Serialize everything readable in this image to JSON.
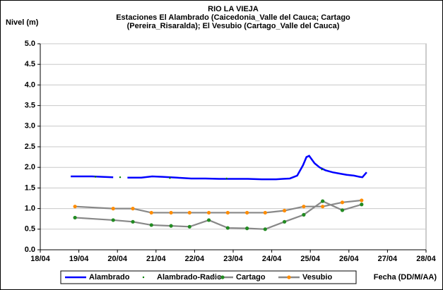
{
  "chart_data": {
    "type": "line",
    "title": "RIO LA VIEJA",
    "subtitle": [
      "Estaciones El Alambrado (Caicedonia_Valle del Cauca; Cartago",
      "(Pereira_Risaralda);  El Vesubio (Cartago_Valle del Cauca)"
    ],
    "y_label": "Nivel (m)",
    "x_label": "Fecha (DD/M/AA)",
    "xlim": [
      18,
      28
    ],
    "xticks": [
      {
        "value": 18,
        "label": "18/04"
      },
      {
        "value": 19,
        "label": "19/04"
      },
      {
        "value": 20,
        "label": "20/04"
      },
      {
        "value": 21,
        "label": "21/04"
      },
      {
        "value": 22,
        "label": "22/04"
      },
      {
        "value": 23,
        "label": "23/04"
      },
      {
        "value": 24,
        "label": "24/04"
      },
      {
        "value": 25,
        "label": "25/04"
      },
      {
        "value": 26,
        "label": "26/04"
      },
      {
        "value": 27,
        "label": "27/04"
      },
      {
        "value": 28,
        "label": "28/04"
      }
    ],
    "ylim": [
      0,
      5
    ],
    "yticks": [
      {
        "value": 0,
        "label": "0.0"
      },
      {
        "value": 0.5,
        "label": "0.5"
      },
      {
        "value": 1,
        "label": "1.0"
      },
      {
        "value": 1.5,
        "label": "1.5"
      },
      {
        "value": 2,
        "label": "2.0"
      },
      {
        "value": 2.5,
        "label": "2.5"
      },
      {
        "value": 3,
        "label": "3.0"
      },
      {
        "value": 3.5,
        "label": "3.5"
      },
      {
        "value": 4,
        "label": "4.0"
      },
      {
        "value": 4.5,
        "label": "4.5"
      },
      {
        "value": 5,
        "label": "5.0"
      }
    ],
    "grid": true,
    "legend": "bottom",
    "series": [
      {
        "name": "Alambrado",
        "color": "#0000ff",
        "line_color": "#0000ff",
        "marker": false,
        "x": [
          18.79,
          19.06,
          19.34,
          19.61,
          19.89,
          20.04,
          20.26,
          20.62,
          20.9,
          21.17,
          21.54,
          21.91,
          22.28,
          22.64,
          23.01,
          23.38,
          23.74,
          24.11,
          24.29,
          24.47,
          24.66,
          24.81,
          24.9,
          24.97,
          25.11,
          25.24,
          25.39,
          25.58,
          25.76,
          25.94,
          26.13,
          26.28,
          26.35,
          26.46
        ],
        "values": [
          1.78,
          1.78,
          1.78,
          1.77,
          1.76,
          null,
          1.75,
          1.75,
          1.78,
          1.77,
          1.75,
          1.73,
          1.73,
          1.72,
          1.72,
          1.72,
          1.71,
          1.71,
          1.72,
          1.73,
          1.8,
          2.05,
          2.25,
          2.28,
          2.1,
          2.0,
          1.93,
          1.88,
          1.85,
          1.82,
          1.8,
          1.77,
          1.76,
          1.88
        ]
      },
      {
        "name": "Alambrado-Radio",
        "color": "#008000",
        "line_color": null,
        "marker": true,
        "x": [
          19.43,
          20.07,
          21.36,
          22.83,
          25.3
        ],
        "values": [
          1.77,
          1.76,
          1.74,
          1.73,
          1.95
        ]
      },
      {
        "name": "Cartago",
        "color": "#228b22",
        "line_color": "#888888",
        "marker": true,
        "x": [
          18.9,
          19.89,
          20.4,
          20.88,
          21.39,
          21.87,
          22.37,
          22.86,
          23.36,
          23.83,
          24.33,
          24.83,
          25.32,
          25.83,
          26.33
        ],
        "values": [
          0.78,
          0.72,
          0.68,
          0.6,
          0.58,
          0.56,
          0.72,
          0.53,
          0.52,
          0.5,
          0.68,
          0.85,
          1.18,
          0.96,
          1.1
        ]
      },
      {
        "name": "Vesubio",
        "color": "#ff8c00",
        "line_color": "#888888",
        "marker": true,
        "x": [
          18.9,
          19.89,
          20.4,
          20.88,
          21.39,
          21.87,
          22.37,
          22.86,
          23.36,
          23.83,
          24.33,
          24.83,
          25.32,
          25.83,
          26.33
        ],
        "values": [
          1.05,
          1.0,
          1.0,
          0.9,
          0.9,
          0.9,
          0.9,
          0.9,
          0.9,
          0.9,
          0.95,
          1.05,
          1.05,
          1.15,
          1.2
        ]
      }
    ]
  }
}
